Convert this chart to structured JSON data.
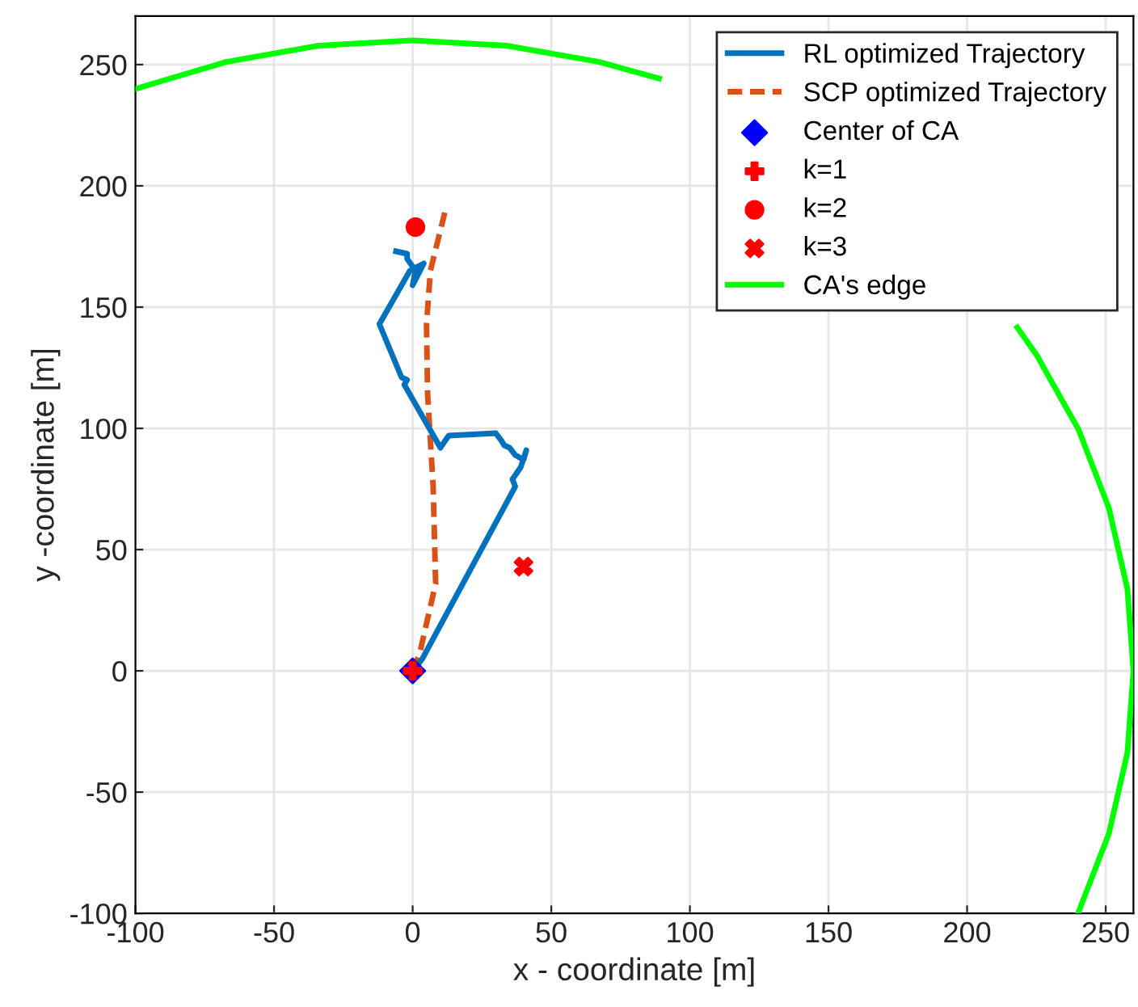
{
  "chart_data": {
    "type": "line",
    "xlabel": "x - coordinate [m]",
    "ylabel": "y -coordinate [m]",
    "xlim": [
      -100,
      260
    ],
    "ylim": [
      -100,
      270
    ],
    "xticks": [
      -100,
      -50,
      0,
      50,
      100,
      150,
      200,
      250
    ],
    "yticks": [
      -100,
      -50,
      0,
      50,
      100,
      150,
      200,
      250
    ],
    "grid": true,
    "legend": "top right",
    "series": [
      {
        "name": "RL optimized Trajectory",
        "line_style": "solid",
        "marker": "none",
        "color": "#0072bd",
        "x": [
          0,
          3.5,
          37,
          36,
          39,
          41,
          40,
          37,
          35,
          33,
          32,
          30,
          13,
          10,
          7,
          -3,
          -2,
          -4,
          -12,
          -1,
          4,
          0,
          1,
          -2,
          -2,
          -6
        ],
        "values": [
          0,
          5,
          76,
          79,
          84,
          91,
          87,
          89,
          92,
          93,
          95,
          98,
          97,
          92,
          98,
          118,
          120,
          121,
          143,
          165,
          168,
          159,
          165,
          170,
          172,
          173
        ]
      },
      {
        "name": "SCP optimized Trajectory",
        "line_style": "dashed",
        "marker": "none",
        "color": "#d95319",
        "x": [
          0,
          2.5,
          8.3,
          7.4,
          5.4,
          5,
          6.4,
          11.6
        ],
        "values": [
          0,
          7,
          36,
          76,
          114,
          143,
          165,
          189
        ]
      },
      {
        "name": "Center of CA",
        "type": "scatter",
        "marker": "diamond",
        "color": "#0000ff",
        "x": [
          0
        ],
        "values": [
          0
        ]
      },
      {
        "name": "k=1",
        "type": "scatter",
        "marker": "plus",
        "color": "#ff0000",
        "x": [
          0
        ],
        "values": [
          0
        ]
      },
      {
        "name": "k=2",
        "type": "scatter",
        "marker": "circle",
        "color": "#ff0000",
        "x": [
          1
        ],
        "values": [
          183
        ]
      },
      {
        "name": "k=3",
        "type": "scatter",
        "marker": "cross",
        "color": "#ff0000",
        "x": [
          40
        ],
        "values": [
          43
        ]
      },
      {
        "name": "CA's edge",
        "line_style": "solid",
        "marker": "none",
        "color": "#00ff00",
        "x": [
          -100,
          -67.3,
          -33.9,
          0,
          33.9,
          67.3,
          88.9,
          null,
          218.1,
          225.2,
          240.2,
          251.1,
          257.8,
          260,
          257.8,
          251.1,
          240
        ],
        "values": [
          240,
          251.1,
          257.8,
          260,
          257.8,
          251.1,
          244.3,
          null,
          141.6,
          130,
          99.5,
          67.3,
          33.9,
          0,
          -33.9,
          -67.3,
          -100
        ]
      }
    ]
  }
}
